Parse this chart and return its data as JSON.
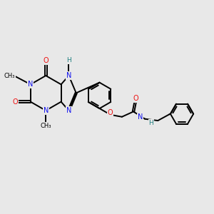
{
  "bg_color": "#e8e8e8",
  "bond_color": "#000000",
  "bond_width": 1.4,
  "N_color": "#1010ee",
  "O_color": "#ee1010",
  "H_color": "#208080",
  "font_size": 6.5,
  "fig_size": [
    3.0,
    3.0
  ],
  "dpi": 100,
  "xlim": [
    0,
    10
  ],
  "ylim": [
    0,
    10
  ]
}
